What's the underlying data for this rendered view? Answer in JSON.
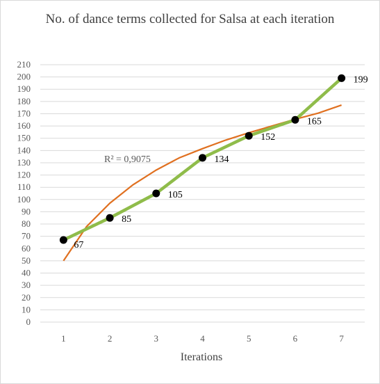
{
  "chart_data": {
    "type": "scatter",
    "title": "No. of dance terms collected for Salsa at each iteration",
    "xlabel": "Iterations",
    "ylabel": "",
    "x": [
      1,
      2,
      3,
      4,
      5,
      6,
      7
    ],
    "xlim": [
      0.5,
      7.5
    ],
    "ylim": [
      0,
      210
    ],
    "y_tick_step": 10,
    "grid": true,
    "legend": "none",
    "series": [
      {
        "values": [
          67,
          85,
          105,
          134,
          152,
          165,
          199
        ],
        "data_labels": [
          "67",
          "85",
          "105",
          "134",
          "152",
          "165",
          "199"
        ],
        "marker_color": "#000000",
        "connector_color": "#8fbc4a"
      }
    ],
    "trendline": {
      "kind": "logarithmic",
      "color": "#e07020",
      "annotation": "R² = 0,9075",
      "samples": [
        [
          1,
          50
        ],
        [
          1.5,
          78
        ],
        [
          2,
          97
        ],
        [
          2.5,
          112
        ],
        [
          3,
          124
        ],
        [
          3.5,
          134
        ],
        [
          4,
          141.5
        ],
        [
          4.5,
          148.5
        ],
        [
          5,
          154.5
        ],
        [
          5.5,
          160
        ],
        [
          6,
          165.5
        ],
        [
          6.5,
          170.5
        ],
        [
          7,
          177
        ]
      ]
    },
    "colors": {
      "grid": "#d9d9d9",
      "text": "#595959"
    }
  }
}
